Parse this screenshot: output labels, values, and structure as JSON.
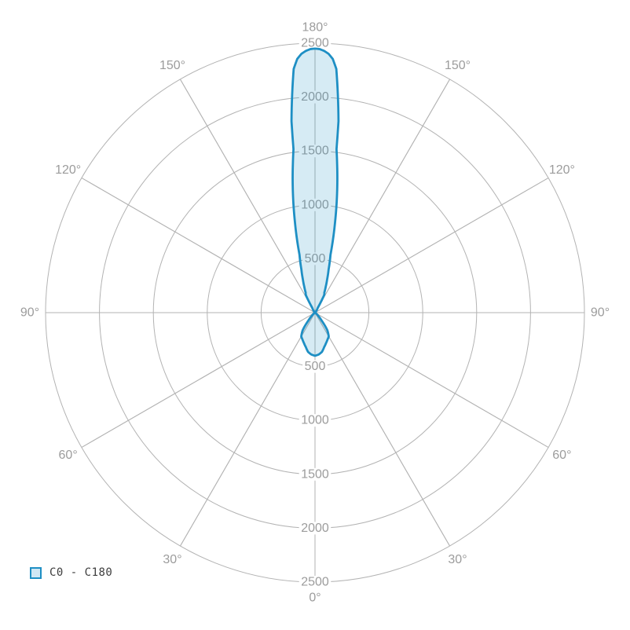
{
  "chart_data": {
    "type": "polar",
    "description": "Photometric luminous intensity distribution curve (polar diagram), 0 deg at bottom, 180 deg at top, narrow main beam toward 180 deg",
    "ring_ticks": [
      500,
      1000,
      1500,
      2000,
      2500
    ],
    "radial_max": 2500,
    "angle_ticks_deg": [
      0,
      30,
      60,
      90,
      120,
      150,
      180
    ],
    "angle_step_deg": 30,
    "degree_suffix": "°",
    "grid_color": "#b3b3b3",
    "label_color": "#9c9c9c",
    "label_bg": "#ffffff",
    "series": [
      {
        "name": "C0 - C180",
        "stroke": "#1e8fc4",
        "fill": "rgba(30,143,196,0.18)",
        "stroke_width": 2.8,
        "symmetric": true,
        "points_gamma_intensity": [
          [
            0,
            400
          ],
          [
            5,
            390
          ],
          [
            10,
            370
          ],
          [
            15,
            330
          ],
          [
            20,
            300
          ],
          [
            25,
            275
          ],
          [
            30,
            255
          ],
          [
            35,
            200
          ],
          [
            40,
            95
          ],
          [
            45,
            45
          ],
          [
            50,
            20
          ],
          [
            55,
            10
          ],
          [
            60,
            6
          ],
          [
            70,
            4
          ],
          [
            80,
            3
          ],
          [
            90,
            3
          ],
          [
            100,
            3
          ],
          [
            110,
            4
          ],
          [
            120,
            5
          ],
          [
            130,
            8
          ],
          [
            140,
            15
          ],
          [
            145,
            25
          ],
          [
            150,
            50
          ],
          [
            152.5,
            185
          ],
          [
            155,
            205
          ],
          [
            157.5,
            260
          ],
          [
            160,
            330
          ],
          [
            162.5,
            420
          ],
          [
            165,
            555
          ],
          [
            167.5,
            860
          ],
          [
            170,
            1190
          ],
          [
            171.5,
            1390
          ],
          [
            172.5,
            1530
          ],
          [
            173,
            1790
          ],
          [
            174,
            2030
          ],
          [
            175,
            2270
          ],
          [
            176,
            2360
          ],
          [
            177,
            2405
          ],
          [
            178,
            2430
          ],
          [
            179,
            2446
          ],
          [
            180,
            2450
          ]
        ]
      }
    ]
  },
  "legend": {
    "items": [
      {
        "label": "C0 - C180",
        "swatch_fill": "#cfe7f4",
        "swatch_border": "#1e8fc4"
      }
    ]
  }
}
